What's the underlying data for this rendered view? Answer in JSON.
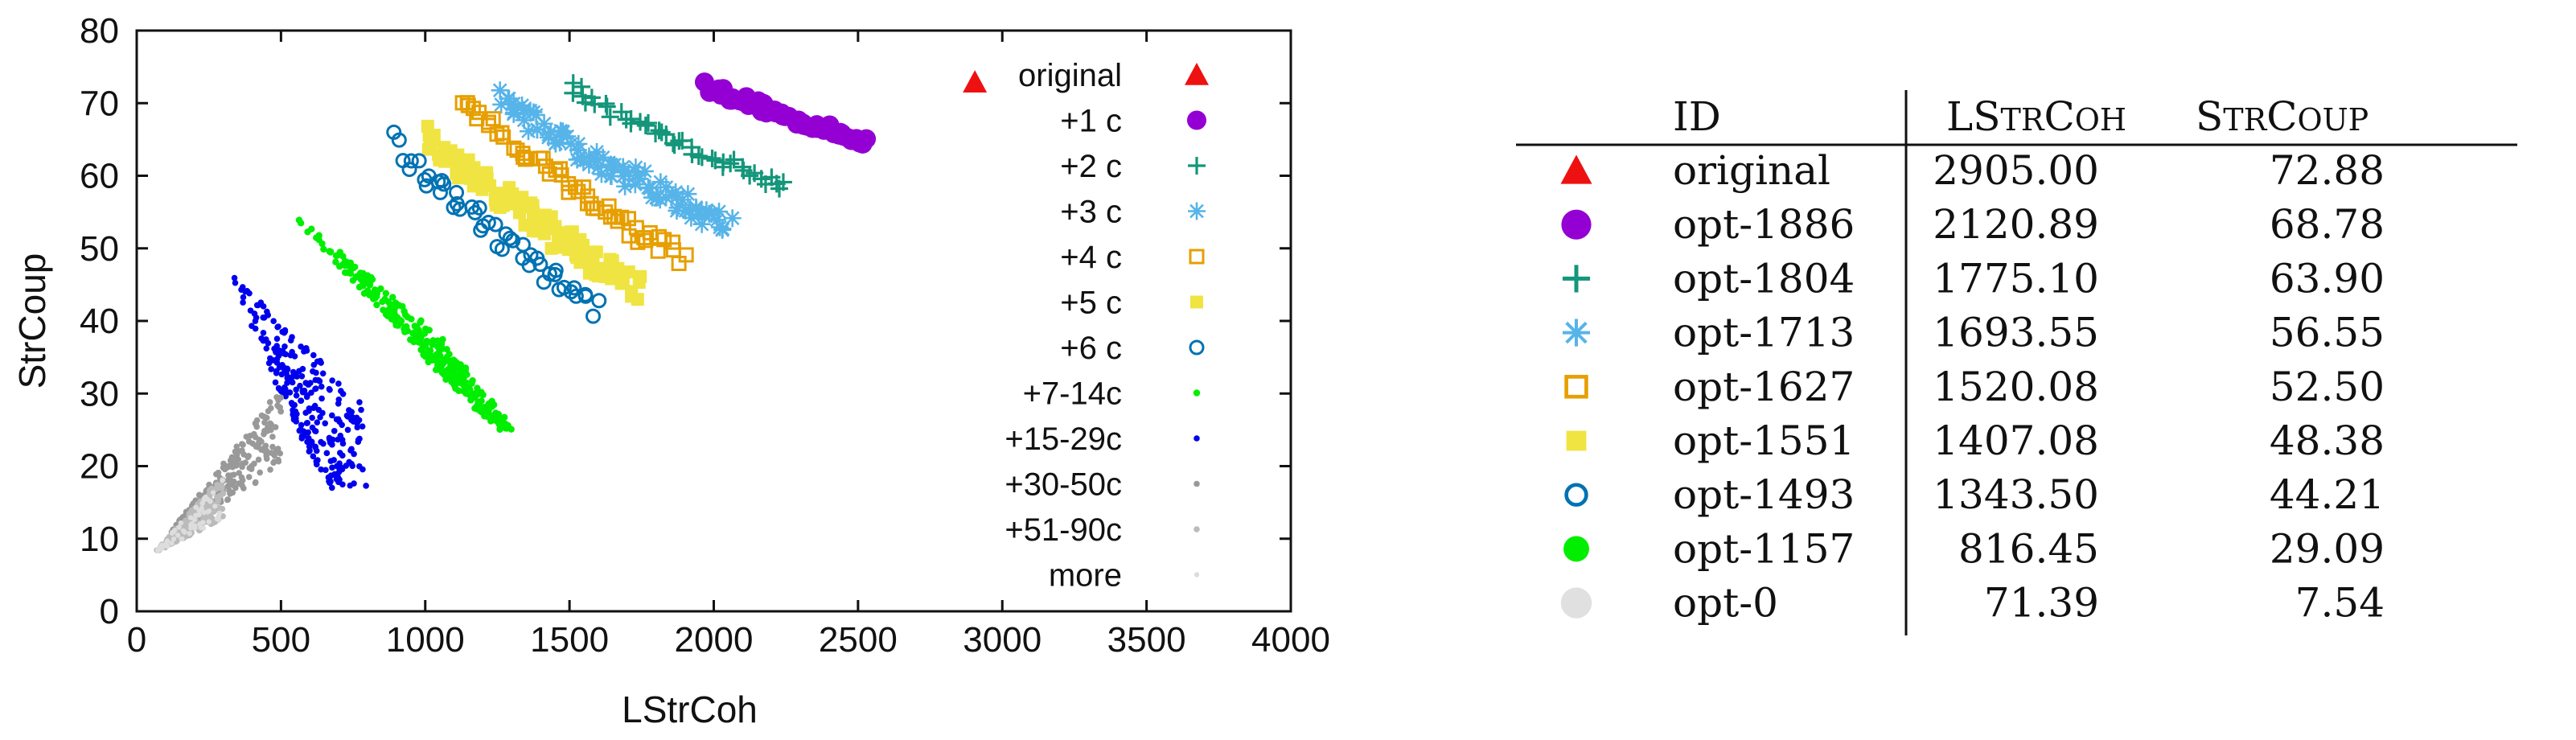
{
  "chart_data": {
    "type": "scatter",
    "xlabel": "LStrCoh",
    "ylabel": "StrCoup",
    "xlim": [
      0,
      4000
    ],
    "ylim": [
      0,
      80
    ],
    "xticks": [
      0,
      500,
      1000,
      1500,
      2000,
      2500,
      3000,
      3500,
      4000
    ],
    "yticks": [
      0,
      10,
      20,
      30,
      40,
      50,
      60,
      70,
      80
    ],
    "grid": false,
    "legend_position": "top-right",
    "series": [
      {
        "name": "original",
        "marker": "triangle",
        "color": "#ee1111",
        "points": [
          [
            2905.0,
            72.88
          ]
        ]
      },
      {
        "name": "+1 c",
        "marker": "circle-filled",
        "color": "#9400d3",
        "arc": {
          "x0": 1980,
          "y0": 72.5,
          "x1": 2520,
          "y1": 64.8,
          "n": 55,
          "spread": 0.6
        }
      },
      {
        "name": "+2 c",
        "marker": "plus",
        "color": "#13967a",
        "arc": {
          "x0": 1500,
          "y0": 72.5,
          "x1": 2240,
          "y1": 58.5,
          "n": 45,
          "spread": 0.8
        }
      },
      {
        "name": "+3 c",
        "marker": "asterisk",
        "color": "#56b4e9",
        "arc": {
          "x0": 1260,
          "y0": 71.0,
          "x1": 2050,
          "y1": 53.0,
          "n": 90,
          "spread": 1.6
        }
      },
      {
        "name": "+4 c",
        "marker": "square-open",
        "color": "#e69f00",
        "arc": {
          "x0": 1130,
          "y0": 71.0,
          "x1": 1890,
          "y1": 48.5,
          "n": 55,
          "spread": 1.4
        }
      },
      {
        "name": "+5 c",
        "marker": "square-filled",
        "color": "#f0e442",
        "arc": {
          "x0": 1000,
          "y0": 65.5,
          "x1": 1740,
          "y1": 44.8,
          "n": 110,
          "spread": 2.2
        }
      },
      {
        "name": "+6 c",
        "marker": "circle-open",
        "color": "#0072b2",
        "arc": {
          "x0": 900,
          "y0": 64.8,
          "x1": 1590,
          "y1": 41.8,
          "n": 48,
          "spread": 1.6
        }
      },
      {
        "name": "+7-14c",
        "marker": "dot",
        "color": "#00ee00",
        "wedge": {
          "apex": [
            500,
            30
          ],
          "n": 380,
          "bands": 9
        }
      },
      {
        "name": "+15-29c",
        "marker": "dot-small",
        "color": "#0000ee",
        "wedge": {
          "apex": [
            300,
            20
          ],
          "n": 320,
          "bands": 8
        }
      },
      {
        "name": "+30-50c",
        "marker": "dot-small",
        "color": "#999999",
        "wedge": {
          "apex": [
            100,
            9
          ],
          "n": 240
        }
      },
      {
        "name": "+51-90c",
        "marker": "dot-small",
        "color": "#bbbbbb",
        "wedge": {
          "apex": [
            60,
            8
          ],
          "n": 160
        }
      },
      {
        "name": "more",
        "marker": "dot-tiny",
        "color": "#dddddd",
        "wedge": {
          "apex": [
            60,
            8
          ],
          "n": 60
        }
      }
    ]
  },
  "table": {
    "headers": {
      "id": "ID",
      "lstrcoh": {
        "cap1": "L",
        "cap2": "S",
        "low2": "TR",
        "cap3": "C",
        "low3": "OH"
      },
      "strcoup": {
        "cap1": "S",
        "low1": "TR",
        "cap2": "C",
        "low2": "OUP"
      }
    },
    "rows": [
      {
        "id": "original",
        "lstrcoh": "2905.00",
        "strcoup": "72.88",
        "marker": "triangle",
        "color": "#ee1111"
      },
      {
        "id": "opt-1886",
        "lstrcoh": "2120.89",
        "strcoup": "68.78",
        "marker": "circle-filled",
        "color": "#9400d3"
      },
      {
        "id": "opt-1804",
        "lstrcoh": "1775.10",
        "strcoup": "63.90",
        "marker": "plus",
        "color": "#13967a"
      },
      {
        "id": "opt-1713",
        "lstrcoh": "1693.55",
        "strcoup": "56.55",
        "marker": "asterisk",
        "color": "#56b4e9"
      },
      {
        "id": "opt-1627",
        "lstrcoh": "1520.08",
        "strcoup": "52.50",
        "marker": "square-open",
        "color": "#e69f00"
      },
      {
        "id": "opt-1551",
        "lstrcoh": "1407.08",
        "strcoup": "48.38",
        "marker": "square-filled",
        "color": "#f0e442"
      },
      {
        "id": "opt-1493",
        "lstrcoh": "1343.50",
        "strcoup": "44.21",
        "marker": "circle-open",
        "color": "#0072b2"
      },
      {
        "id": "opt-1157",
        "lstrcoh": "816.45",
        "strcoup": "29.09",
        "marker": "dot",
        "color": "#00ee00"
      },
      {
        "id": "opt-0",
        "lstrcoh": "71.39",
        "strcoup": "7.54",
        "marker": "circle-filled",
        "color": "#e0e0e0"
      }
    ]
  }
}
